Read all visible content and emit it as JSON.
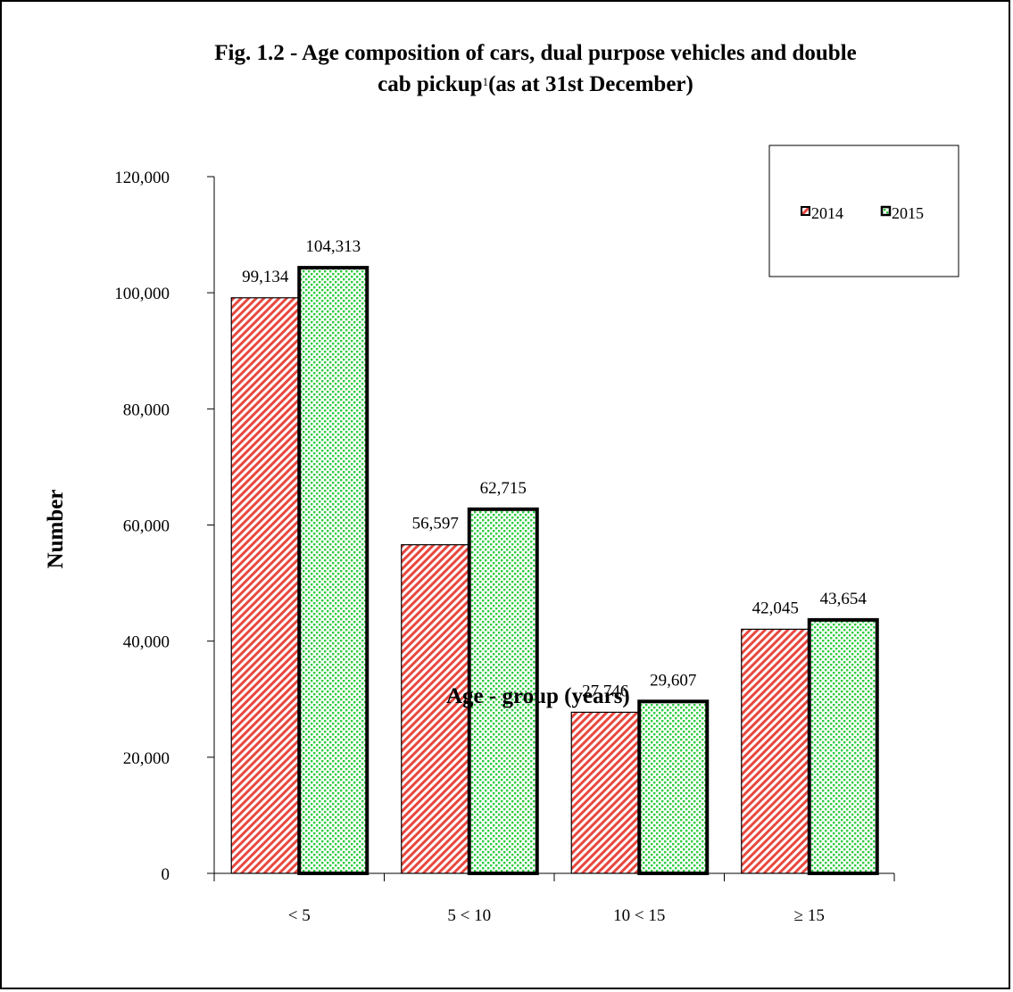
{
  "chart_data": {
    "type": "bar",
    "title_line1": "Fig. 1.2 -  Age composition of cars, dual purpose vehicles and double",
    "title_line2_main": "cab pickup",
    "title_superscript": "1",
    "title_line2_end": "(as at 31st  December)",
    "xlabel": "Age - group (years)",
    "ylabel": "Number",
    "categories": [
      "<  5",
      "5 < 10",
      "10 < 15",
      "≥ 15"
    ],
    "ylim": [
      0,
      120000
    ],
    "yticks": [
      "0",
      "20,000",
      "40,000",
      "60,000",
      "80,000",
      "100,000",
      "120,000"
    ],
    "ytick_values": [
      0,
      20000,
      40000,
      60000,
      80000,
      100000,
      120000
    ],
    "series": [
      {
        "name": "2014",
        "values": [
          99134,
          56597,
          27746,
          42045
        ],
        "labels": [
          "99,134",
          "56,597",
          "27,746",
          "42,045"
        ],
        "color": "#e8473f",
        "pattern": "diagonal-hatch"
      },
      {
        "name": "2015",
        "values": [
          104313,
          62715,
          29607,
          43654
        ],
        "labels": [
          "104,313",
          "62,715",
          "29,607",
          "43,654"
        ],
        "color": "#2ecc40",
        "pattern": "dots"
      }
    ],
    "legend_position": "top-right",
    "grid": false
  }
}
